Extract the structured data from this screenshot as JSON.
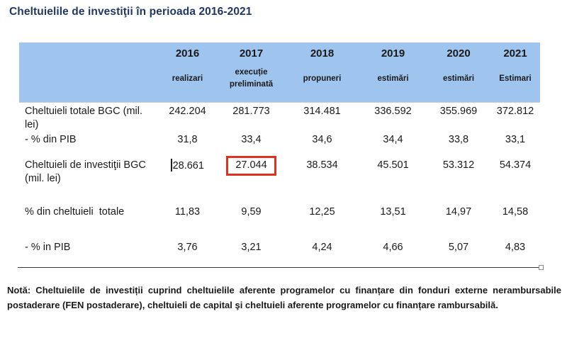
{
  "title": "Cheltuielile de investiţii în perioada 2016-2021",
  "table": {
    "header": {
      "years": [
        "2016",
        "2017",
        "2018",
        "2019",
        "2020",
        "2021"
      ],
      "sublabels": [
        "realizari",
        "execuție preliminată",
        "propuneri",
        "estimări",
        "estimări",
        "Estimari"
      ]
    },
    "rows": [
      {
        "label": "Cheltuieli totale BGC (mil. lei)",
        "values": [
          "242.204",
          "281.773",
          "314.481",
          "336.592",
          "355.969",
          "372.812"
        ]
      },
      {
        "label": "- % din PIB",
        "values": [
          "31,8",
          "33,4",
          "34,6",
          "34,4",
          "33,8",
          "33,1"
        ]
      },
      {
        "label": "Cheltuieli de investiţii BGC (mil. lei)",
        "values": [
          "28.661",
          "27.044",
          "38.534",
          "45.501",
          "53.312",
          "54.374"
        ]
      },
      {
        "label": "% din cheltuieli  totale",
        "values": [
          "11,83",
          "9,59",
          "12,25",
          "13,51",
          "14,97",
          "14,58"
        ]
      },
      {
        "label": "- % in PIB",
        "values": [
          "3,76",
          "3,21",
          "4,24",
          "4,66",
          "5,07",
          "4,83"
        ]
      }
    ],
    "highlighted_cell": {
      "row_label": "Cheltuieli de investiţii BGC (mil. lei)",
      "year": "2017",
      "value": "27.044"
    }
  },
  "note": {
    "text": "Notă: Cheltuielile de investiții cuprind cheltuielile aferente programelor cu finanțare din fonduri externe nerambursabile postaderare (FEN postaderare), cheltuieli de capital şi cheltuieli aferente programelor cu finanțare rambursabilă."
  },
  "colors": {
    "header_bg": "#9FC5EF",
    "title_text": "#1F3864",
    "highlight_border": "#E0301E",
    "body_text": "#1A1A1A"
  }
}
